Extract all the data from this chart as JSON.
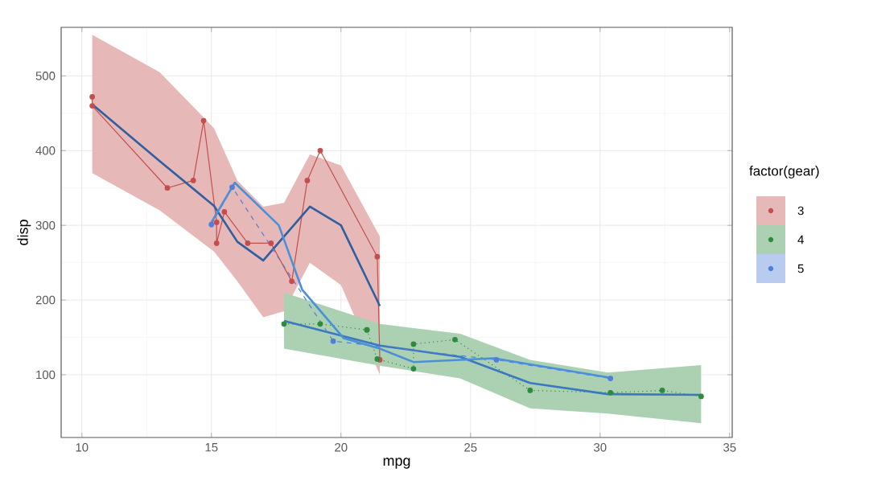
{
  "chart_data": {
    "type": "line",
    "xlabel": "mpg",
    "ylabel": "disp",
    "legend_title": "factor(gear)",
    "legend": "right",
    "grid": true,
    "xlim": [
      9.2,
      35.1
    ],
    "ylim": [
      16,
      565
    ],
    "xticks": [
      10,
      15,
      20,
      25,
      30,
      35
    ],
    "yticks": [
      100,
      200,
      300,
      400,
      500
    ],
    "series": [
      {
        "name": "3",
        "color": "#c44e4e",
        "marker": "circle",
        "line_style": "solid",
        "x": [
          10.4,
          10.4,
          13.3,
          14.3,
          14.7,
          15.2,
          15.2,
          15.5,
          16.4,
          17.3,
          18.1,
          18.7,
          19.2,
          21.4,
          21.5
        ],
        "values": [
          472,
          460,
          350,
          360,
          440,
          304,
          276,
          318,
          276,
          276,
          225,
          360,
          400,
          258,
          120
        ]
      },
      {
        "color": "#2f5f9f",
        "marker": "none",
        "line_style": "solid",
        "x": [
          10.4,
          13,
          15.1,
          16,
          17,
          17.8,
          18.8,
          20,
          21.5
        ],
        "values": [
          462,
          386,
          326,
          278,
          253,
          285,
          325,
          300,
          192
        ],
        "lower": [
          370,
          320,
          265,
          225,
          177,
          185,
          250,
          220,
          100
        ],
        "upper": [
          555,
          505,
          430,
          360,
          325,
          330,
          395,
          380,
          285
        ]
      },
      {
        "name": "4",
        "color": "#2e8b3e",
        "marker": "circle",
        "line_style": "dotted",
        "x": [
          17.8,
          19.2,
          21,
          21,
          21.4,
          22.8,
          22.8,
          24.4,
          27.3,
          30.4,
          32.4,
          33.9
        ],
        "values": [
          168,
          168,
          160,
          160,
          121,
          108,
          141,
          147,
          79,
          76,
          79,
          71
        ]
      },
      {
        "color": "#3a78c0",
        "marker": "none",
        "line_style": "solid",
        "x": [
          17.8,
          21.5,
          24.6,
          27.3,
          30.3,
          33.9
        ],
        "values": [
          172,
          139,
          124,
          89,
          74,
          73
        ],
        "lower": [
          135,
          112,
          95,
          55,
          48,
          35
        ],
        "upper": [
          210,
          168,
          155,
          120,
          103,
          113
        ]
      },
      {
        "name": "5",
        "color": "#4f7fd9",
        "marker": "circle",
        "line_style": "dashed",
        "x": [
          15,
          15.8,
          19.7,
          26,
          30.4
        ],
        "values": [
          301,
          351,
          145,
          120,
          95
        ]
      },
      {
        "color": "#4a90d9",
        "marker": "none",
        "line_style": "solid",
        "x": [
          15,
          15.9,
          17.6,
          18.5,
          20.1,
          21.5,
          22.8,
          25.9,
          30.4
        ],
        "values": [
          304,
          357,
          300,
          214,
          149,
          135,
          117,
          122,
          96
        ]
      }
    ]
  }
}
